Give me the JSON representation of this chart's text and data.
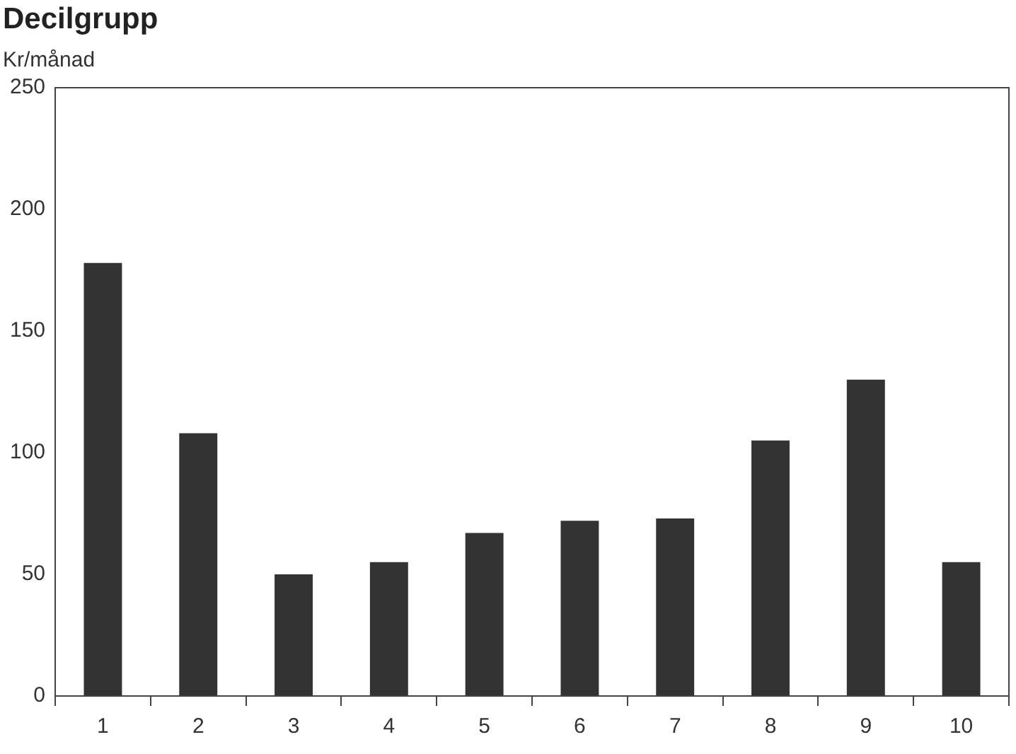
{
  "chart_data": {
    "type": "bar",
    "title": "Decilgrupp",
    "ylabel": "Kr/månad",
    "categories": [
      "1",
      "2",
      "3",
      "4",
      "5",
      "6",
      "7",
      "8",
      "9",
      "10"
    ],
    "values": [
      178,
      108,
      50,
      55,
      67,
      72,
      73,
      105,
      130,
      55
    ],
    "color": "#333333",
    "ylim": [
      0,
      250
    ],
    "yticks": [
      0,
      50,
      100,
      150,
      200,
      250
    ]
  }
}
